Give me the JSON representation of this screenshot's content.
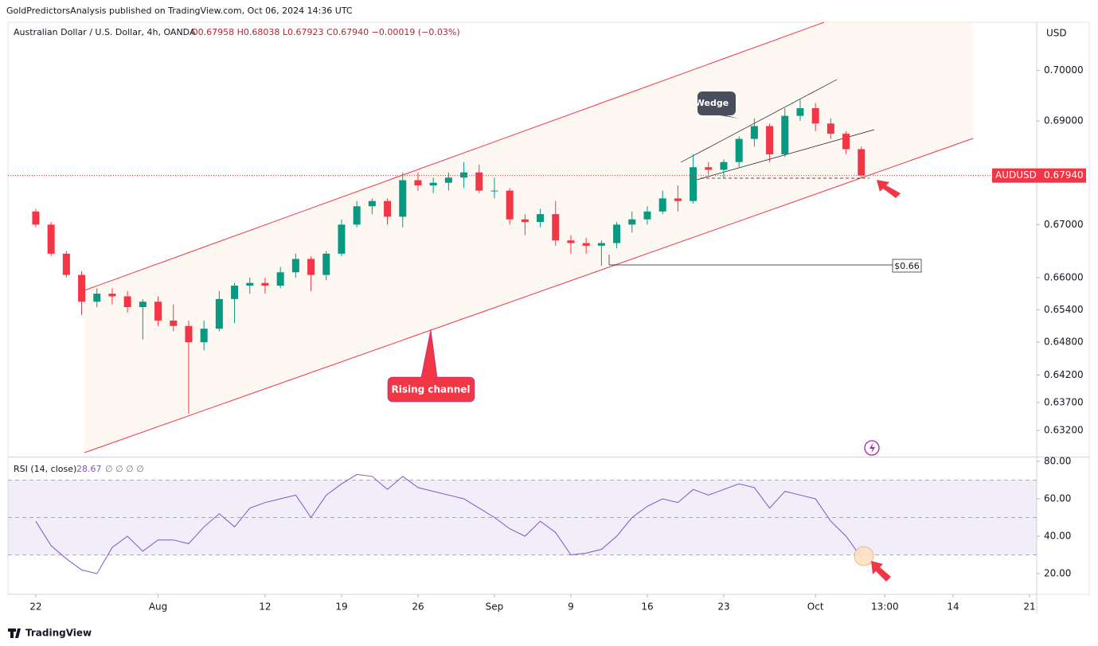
{
  "source": "GoldPredictorsAnalysis published on TradingView.com, Oct 06, 2024 14:36 UTC",
  "brand": "TradingView",
  "chart_data": [
    {
      "type": "candlestick",
      "title": "Australian Dollar / U.S. Dollar, 4h, OANDA",
      "quote": "O0.67958 H0.68038 L0.67923 C0.67940 −0.00019 (−0.03%)",
      "currency": "USD",
      "symbol": "AUDUSD",
      "last_price": {
        "value": 0.6794,
        "label": "0.67940"
      },
      "annotations": {
        "wedge": "Wedge",
        "channel": "Rising channel",
        "support": "$0.66"
      },
      "up_color": "#089981",
      "down_color": "#f23645",
      "log_scale": true,
      "xlim": [
        -1.82,
        65.47
      ],
      "ylim": [
        0.6273,
        0.7096
      ],
      "yticks": [
        {
          "value": 0.7,
          "label": "0.70000"
        },
        {
          "value": 0.69,
          "label": "0.69000"
        },
        {
          "value": 0.67,
          "label": "0.67000"
        },
        {
          "value": 0.66,
          "label": "0.66000"
        },
        {
          "value": 0.654,
          "label": "0.65400"
        },
        {
          "value": 0.648,
          "label": "0.64800"
        },
        {
          "value": 0.642,
          "label": "0.64200"
        },
        {
          "value": 0.637,
          "label": "0.63700"
        },
        {
          "value": 0.632,
          "label": "0.63200"
        }
      ],
      "x": [
        0,
        1,
        2,
        3,
        4,
        5,
        6,
        7,
        8,
        9,
        10,
        11,
        12,
        13,
        14,
        15,
        16,
        17,
        18,
        19,
        20,
        21,
        22,
        23,
        24,
        25,
        26,
        27,
        28,
        29,
        30,
        31,
        32,
        33,
        34,
        35,
        36,
        37,
        38,
        39,
        40,
        41,
        42,
        43,
        44,
        45,
        46,
        47,
        48,
        49,
        50,
        51,
        52,
        53,
        54
      ],
      "open": [
        0.6725,
        0.67,
        0.6645,
        0.6605,
        0.6555,
        0.657,
        0.6565,
        0.6545,
        0.6555,
        0.652,
        0.651,
        0.648,
        0.6505,
        0.656,
        0.6585,
        0.659,
        0.6585,
        0.661,
        0.6635,
        0.6605,
        0.6645,
        0.67,
        0.6735,
        0.6745,
        0.6715,
        0.6785,
        0.6775,
        0.678,
        0.679,
        0.68,
        0.6765,
        0.6765,
        0.671,
        0.6705,
        0.672,
        0.667,
        0.6665,
        0.666,
        0.6665,
        0.67,
        0.671,
        0.6725,
        0.675,
        0.6745,
        0.681,
        0.6805,
        0.682,
        0.6865,
        0.689,
        0.6835,
        0.691,
        0.6925,
        0.6895,
        0.6875,
        0.6845
      ],
      "high": [
        0.673,
        0.6705,
        0.665,
        0.6612,
        0.658,
        0.658,
        0.6575,
        0.656,
        0.6565,
        0.655,
        0.652,
        0.652,
        0.6575,
        0.659,
        0.66,
        0.66,
        0.662,
        0.6645,
        0.664,
        0.665,
        0.671,
        0.6745,
        0.675,
        0.675,
        0.68,
        0.68,
        0.679,
        0.68,
        0.682,
        0.6815,
        0.679,
        0.677,
        0.672,
        0.673,
        0.6745,
        0.668,
        0.6675,
        0.667,
        0.6705,
        0.6725,
        0.6735,
        0.6765,
        0.6775,
        0.6835,
        0.682,
        0.6825,
        0.687,
        0.6905,
        0.6895,
        0.6925,
        0.6942,
        0.6935,
        0.6905,
        0.688,
        0.685
      ],
      "low": [
        0.6695,
        0.664,
        0.66,
        0.653,
        0.6545,
        0.655,
        0.6535,
        0.6485,
        0.651,
        0.65,
        0.635,
        0.6465,
        0.65,
        0.6515,
        0.657,
        0.657,
        0.658,
        0.66,
        0.6575,
        0.6595,
        0.664,
        0.6695,
        0.672,
        0.67,
        0.6695,
        0.6765,
        0.676,
        0.6765,
        0.677,
        0.676,
        0.675,
        0.67,
        0.668,
        0.6695,
        0.666,
        0.6645,
        0.6645,
        0.6622,
        0.6655,
        0.6685,
        0.67,
        0.672,
        0.6725,
        0.674,
        0.6795,
        0.679,
        0.681,
        0.685,
        0.682,
        0.683,
        0.69,
        0.688,
        0.6865,
        0.6835,
        0.679
      ],
      "close": [
        0.67,
        0.6645,
        0.6605,
        0.6555,
        0.657,
        0.6565,
        0.6545,
        0.6555,
        0.652,
        0.651,
        0.648,
        0.6505,
        0.656,
        0.6585,
        0.659,
        0.6585,
        0.661,
        0.6635,
        0.6605,
        0.6645,
        0.67,
        0.6735,
        0.6745,
        0.6715,
        0.6785,
        0.6775,
        0.678,
        0.679,
        0.68,
        0.6765,
        0.6765,
        0.671,
        0.6705,
        0.672,
        0.667,
        0.6665,
        0.666,
        0.6665,
        0.67,
        0.671,
        0.6725,
        0.675,
        0.6745,
        0.681,
        0.6805,
        0.682,
        0.6865,
        0.689,
        0.6835,
        0.691,
        0.6925,
        0.6895,
        0.6875,
        0.6845,
        0.6794
      ]
    },
    {
      "type": "line",
      "title": "RSI (14, close)",
      "subtitle": "∅ ∅ ∅ ∅",
      "color": "#7e57c2",
      "levels": [
        70,
        50,
        30
      ],
      "xlim": [
        -1.82,
        65.47
      ],
      "ylim": [
        9.4,
        82.1
      ],
      "yticks": [
        {
          "value": 80,
          "label": "80.00"
        },
        {
          "value": 60,
          "label": "60.00"
        },
        {
          "value": 40,
          "label": "40.00"
        },
        {
          "value": 20,
          "label": "20.00"
        }
      ],
      "xticks": [
        {
          "value": 0,
          "label": "22"
        },
        {
          "value": 8,
          "label": "Aug"
        },
        {
          "value": 15,
          "label": "12"
        },
        {
          "value": 20,
          "label": "19"
        },
        {
          "value": 25,
          "label": "26"
        },
        {
          "value": 30,
          "label": "Sep"
        },
        {
          "value": 35,
          "label": "9"
        },
        {
          "value": 40,
          "label": "16"
        },
        {
          "value": 45,
          "label": "23"
        },
        {
          "value": 51,
          "label": "Oct"
        },
        {
          "value": 55.54,
          "label": "13:00"
        },
        {
          "value": 60,
          "label": "14"
        },
        {
          "value": 65,
          "label": "21"
        }
      ],
      "x": [
        0,
        1,
        2,
        3,
        4,
        5,
        6,
        7,
        8,
        9,
        10,
        11,
        12,
        13,
        14,
        15,
        16,
        17,
        18,
        19,
        20,
        21,
        22,
        23,
        24,
        25,
        26,
        27,
        28,
        29,
        30,
        31,
        32,
        33,
        34,
        35,
        36,
        37,
        38,
        39,
        40,
        41,
        42,
        43,
        44,
        45,
        46,
        47,
        48,
        49,
        50,
        51,
        52,
        53,
        54
      ],
      "values": [
        48,
        35,
        28,
        22,
        20,
        34,
        40,
        32,
        38,
        38,
        36,
        45,
        52,
        45,
        55,
        58,
        60,
        62,
        50,
        62,
        68,
        73,
        72,
        65,
        72,
        66,
        64,
        62,
        60,
        55,
        50,
        44,
        40,
        48,
        42,
        30,
        31,
        33,
        40,
        50,
        56,
        60,
        58,
        65,
        62,
        65,
        68,
        66,
        55,
        64,
        62,
        60,
        48,
        40,
        28.67
      ]
    }
  ]
}
